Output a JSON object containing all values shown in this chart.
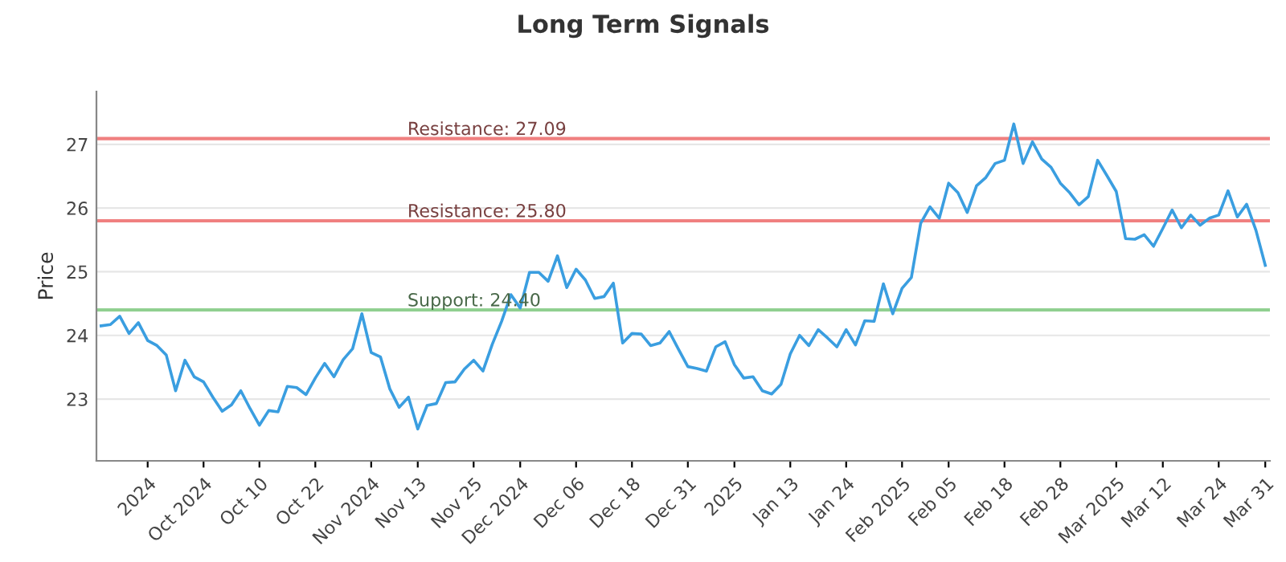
{
  "chart_data": {
    "type": "line",
    "title": "Long Term Signals",
    "ylabel": "Price",
    "categories": [
      null,
      null,
      null,
      null,
      null,
      "2024",
      null,
      null,
      null,
      null,
      null,
      "Oct 2024",
      null,
      null,
      null,
      null,
      null,
      "Oct 10",
      null,
      null,
      null,
      null,
      null,
      "Oct 22",
      null,
      null,
      null,
      null,
      null,
      "Nov 2024",
      null,
      null,
      null,
      null,
      "Nov 13",
      null,
      null,
      null,
      null,
      null,
      "Nov 25",
      null,
      null,
      null,
      null,
      "Dec 2024",
      null,
      null,
      null,
      null,
      null,
      "Dec 06",
      null,
      null,
      null,
      null,
      null,
      "Dec 18",
      null,
      null,
      null,
      null,
      null,
      "Dec 31",
      null,
      null,
      null,
      null,
      "2025",
      null,
      null,
      null,
      null,
      null,
      "Jan 13",
      null,
      null,
      null,
      null,
      null,
      "Jan 24",
      null,
      null,
      null,
      null,
      null,
      "Feb 2025",
      null,
      null,
      null,
      null,
      "Feb 05",
      null,
      null,
      null,
      null,
      null,
      "Feb 18",
      null,
      null,
      null,
      null,
      null,
      "Feb 28",
      null,
      null,
      null,
      null,
      null,
      "Mar 2025",
      null,
      null,
      null,
      null,
      "Mar 12",
      null,
      null,
      null,
      null,
      null,
      "Mar 24",
      null,
      null,
      null,
      null,
      "Mar 31"
    ],
    "series": [
      {
        "color": "#3a9ee0",
        "values": [
          24.15,
          24.17,
          24.3,
          24.03,
          24.2,
          23.92,
          23.84,
          23.69,
          23.13,
          23.61,
          23.35,
          23.27,
          23.03,
          22.81,
          22.91,
          23.13,
          22.85,
          22.59,
          22.82,
          22.8,
          23.2,
          23.18,
          23.07,
          23.33,
          23.56,
          23.35,
          23.62,
          23.79,
          24.34,
          23.73,
          23.66,
          23.16,
          22.87,
          23.03,
          22.53,
          22.9,
          22.93,
          23.26,
          23.27,
          23.47,
          23.61,
          23.44,
          23.86,
          24.22,
          24.64,
          24.43,
          24.99,
          24.99,
          24.85,
          25.25,
          24.75,
          25.04,
          24.87,
          24.58,
          24.61,
          24.82,
          23.88,
          24.03,
          24.02,
          23.84,
          23.88,
          24.06,
          23.78,
          23.51,
          23.48,
          23.44,
          23.82,
          23.9,
          23.54,
          23.33,
          23.35,
          23.13,
          23.08,
          23.23,
          23.71,
          24.0,
          23.84,
          24.09,
          23.96,
          23.82,
          24.09,
          23.85,
          24.23,
          24.22,
          24.81,
          24.34,
          24.74,
          24.91,
          25.76,
          26.02,
          25.84,
          26.39,
          26.24,
          25.93,
          26.35,
          26.48,
          26.7,
          26.75,
          27.32,
          26.7,
          27.04,
          26.77,
          26.64,
          26.39,
          26.24,
          26.05,
          26.18,
          26.75,
          26.51,
          26.26,
          25.52,
          25.51,
          25.58,
          25.4,
          25.68,
          25.97,
          25.69,
          25.89,
          25.73,
          25.84,
          25.89,
          26.27,
          25.86,
          26.06,
          25.65,
          25.1
        ]
      }
    ],
    "ylim": [
      22.03,
      27.83
    ],
    "yticks": [
      23,
      24,
      25,
      26,
      27
    ],
    "grid": "y",
    "legend": false,
    "marker": "none",
    "line_style": "solid",
    "ref_lines": [
      {
        "axis": "y",
        "value": 27.09,
        "label": "Resistance: 27.09",
        "color": "#f08080"
      },
      {
        "axis": "y",
        "value": 25.8,
        "label": "Resistance: 25.80",
        "color": "#f08080"
      },
      {
        "axis": "y",
        "value": 24.4,
        "label": "Support: 24.40",
        "color": "#90d090"
      }
    ]
  }
}
